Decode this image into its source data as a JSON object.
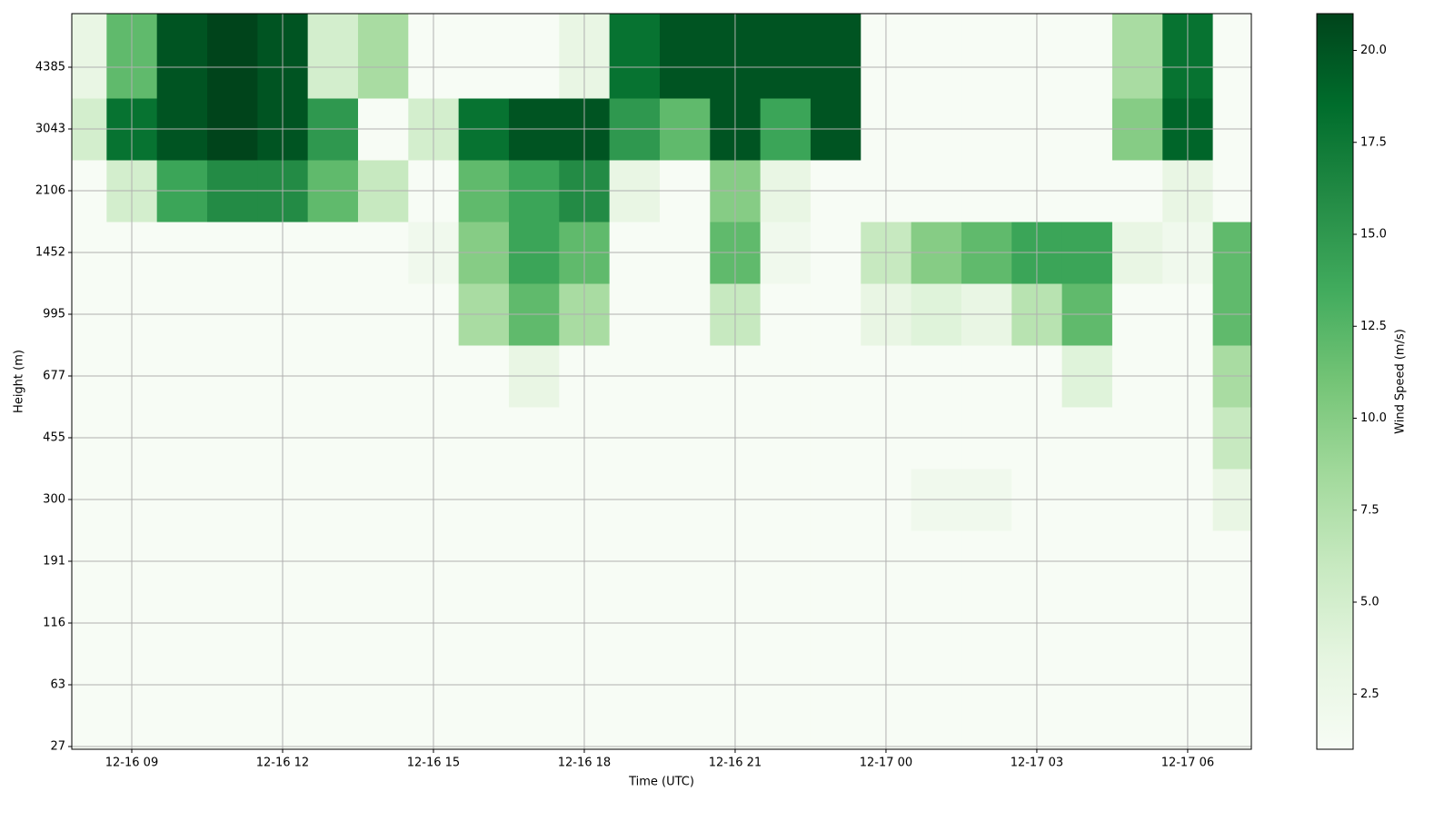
{
  "chart_data": {
    "type": "heatmap",
    "x_label": "Time (UTC)",
    "y_label": "Height (m)",
    "colorbar_label": "Wind Speed (m/s)",
    "x": [
      "12-16 08",
      "12-16 09",
      "12-16 10",
      "12-16 11",
      "12-16 12",
      "12-16 13",
      "12-16 14",
      "12-16 15",
      "12-16 16",
      "12-16 17",
      "12-16 18",
      "12-16 19",
      "12-16 20",
      "12-16 21",
      "12-16 22",
      "12-16 23",
      "12-17 00",
      "12-17 01",
      "12-17 02",
      "12-17 03",
      "12-17 04",
      "12-17 05",
      "12-17 06",
      "12-17 07"
    ],
    "xticks": [
      "12-16 09",
      "12-16 12",
      "12-16 15",
      "12-16 18",
      "12-16 21",
      "12-17 00",
      "12-17 03",
      "12-17 06"
    ],
    "y": [
      27,
      63,
      116,
      191,
      300,
      455,
      677,
      995,
      1452,
      2106,
      3043,
      4385
    ],
    "values": [
      [
        1,
        1,
        1,
        1,
        1,
        1,
        1,
        1,
        1,
        1,
        1,
        1,
        1,
        1,
        1,
        1,
        1,
        1,
        1,
        1,
        1,
        1,
        1,
        1
      ],
      [
        1,
        1,
        1,
        1,
        1,
        1,
        1,
        1,
        1,
        1,
        1,
        1,
        1,
        1,
        1,
        1,
        1,
        1,
        1,
        1,
        1,
        1,
        1,
        1
      ],
      [
        1,
        1,
        1,
        1,
        1,
        1,
        1,
        1,
        1,
        1,
        1,
        1,
        1,
        1,
        1,
        1,
        1,
        1,
        1,
        1,
        1,
        1,
        1,
        1
      ],
      [
        1,
        1,
        1,
        1,
        1,
        1,
        1,
        1,
        1,
        1,
        1,
        1,
        1,
        1,
        1,
        1,
        1,
        1,
        1,
        1,
        1,
        1,
        1,
        1
      ],
      [
        1,
        1,
        1,
        1,
        1,
        1,
        1,
        1,
        1,
        1,
        1,
        1,
        1,
        1,
        1,
        1,
        1,
        2,
        2,
        1,
        1,
        1,
        1,
        3
      ],
      [
        1,
        1,
        1,
        1,
        1,
        1,
        1,
        1,
        1,
        1,
        1,
        1,
        1,
        1,
        1,
        1,
        1,
        1,
        1,
        1,
        1,
        1,
        1,
        6
      ],
      [
        1,
        1,
        1,
        1,
        1,
        1,
        1,
        1,
        1,
        3,
        1,
        1,
        1,
        1,
        1,
        1,
        1,
        1,
        1,
        1,
        4,
        1,
        1,
        8
      ],
      [
        1,
        1,
        1,
        1,
        1,
        1,
        1,
        1,
        8,
        12,
        8,
        1,
        1,
        6,
        1,
        1,
        3,
        4,
        3,
        7,
        12,
        1,
        1,
        12
      ],
      [
        1,
        1,
        1,
        1,
        1,
        1,
        1,
        2,
        10,
        14,
        12,
        1,
        1,
        12,
        2,
        1,
        6,
        10,
        12,
        14,
        14,
        3,
        2,
        12
      ],
      [
        1,
        5,
        14,
        16,
        16,
        12,
        6,
        1,
        12,
        14,
        16,
        3,
        1,
        10,
        3,
        1,
        1,
        1,
        1,
        1,
        1,
        1,
        3,
        1
      ],
      [
        5,
        18,
        20,
        21,
        20,
        15,
        1,
        5,
        18,
        20,
        20,
        15,
        12,
        20,
        14,
        20,
        1,
        1,
        1,
        1,
        1,
        10,
        19,
        1
      ],
      [
        3,
        12,
        20,
        21,
        20,
        5,
        8,
        1,
        1,
        1,
        3,
        18,
        20,
        20,
        20,
        20,
        1,
        1,
        1,
        1,
        1,
        8,
        18,
        1
      ]
    ],
    "zlim": [
      1,
      21
    ],
    "zticks": [
      2.5,
      {
        "value": 5,
        "label": "5.0"
      },
      7.5,
      {
        "value": 10,
        "label": "10.0"
      },
      12.5,
      {
        "value": 15,
        "label": "15.0"
      },
      17.5,
      {
        "value": 20,
        "label": "20.0"
      }
    ],
    "colormap": [
      "#f7fcf5",
      "#e5f5e0",
      "#c7e9c0",
      "#a1d99b",
      "#74c476",
      "#41ab5d",
      "#238b45",
      "#006d2c",
      "#00441b"
    ],
    "grid": true
  }
}
